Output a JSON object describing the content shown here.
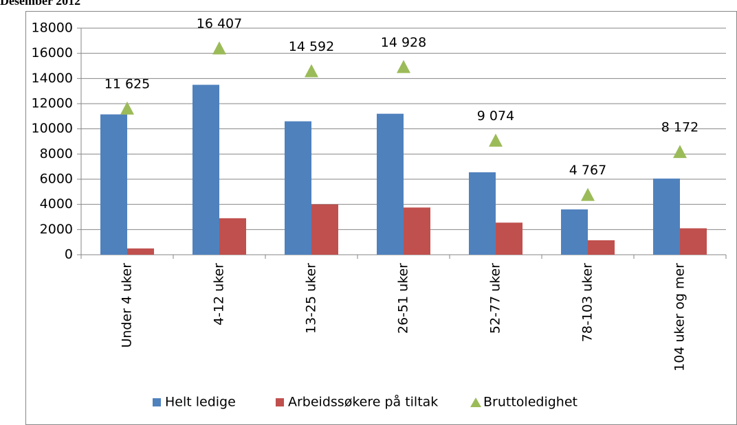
{
  "chart_data": {
    "type": "bar",
    "title": "Desember 2012",
    "categories": [
      "Under 4 uker",
      "4-12 uker",
      "13-25 uker",
      "26-51 uker",
      "52-77 uker",
      "78-103 uker",
      "104 uker og mer"
    ],
    "series": [
      {
        "name": "Helt ledige",
        "color": "#4f81bd",
        "type": "bar",
        "values": [
          11150,
          13500,
          10600,
          11200,
          6550,
          3600,
          6050
        ]
      },
      {
        "name": "Arbeidssøkere på tiltak",
        "color": "#c0504d",
        "type": "bar",
        "values": [
          500,
          2900,
          4000,
          3750,
          2550,
          1150,
          2100
        ]
      },
      {
        "name": "Bruttoledighet",
        "color": "#9bbb59",
        "type": "scatter",
        "marker": "triangle",
        "values": [
          11625,
          16407,
          14592,
          14928,
          9074,
          4767,
          8172
        ],
        "value_labels": [
          "11 625",
          "16 407",
          "14 592",
          "14 928",
          "9 074",
          "4 767",
          "8 172"
        ]
      }
    ],
    "ylim": [
      0,
      18000
    ],
    "yticks": [
      0,
      2000,
      4000,
      6000,
      8000,
      10000,
      12000,
      14000,
      16000,
      18000
    ],
    "grid": true,
    "legend": "bottom"
  }
}
